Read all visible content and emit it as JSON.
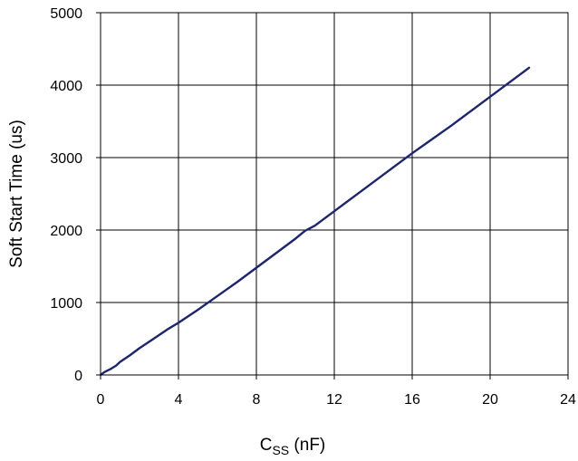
{
  "chart_data": {
    "type": "line",
    "xlabel": "C",
    "xlabel_sub": "SS",
    "xlabel_unit": " (nF)",
    "ylabel": "Soft Start Time (us)",
    "xlim": [
      0,
      24
    ],
    "ylim": [
      0,
      5000
    ],
    "x_ticks": [
      0,
      4,
      8,
      12,
      16,
      20,
      24
    ],
    "y_ticks": [
      0,
      1000,
      2000,
      3000,
      4000,
      5000
    ],
    "grid": true,
    "series": [
      {
        "color": "#1a237e",
        "x": [
          0,
          0.2,
          0.5,
          0.8,
          1,
          1.5,
          2,
          2.5,
          3,
          3.5,
          4,
          5,
          6,
          7,
          8,
          9,
          10,
          10.5,
          11,
          12,
          13,
          14,
          15,
          16,
          17,
          18,
          19,
          20,
          21,
          22
        ],
        "y": [
          0,
          40,
          80,
          130,
          180,
          270,
          370,
          460,
          550,
          640,
          720,
          900,
          1090,
          1280,
          1480,
          1680,
          1880,
          1990,
          2060,
          2260,
          2460,
          2660,
          2860,
          3060,
          3250,
          3440,
          3640,
          3840,
          4040,
          4240
        ]
      }
    ]
  }
}
